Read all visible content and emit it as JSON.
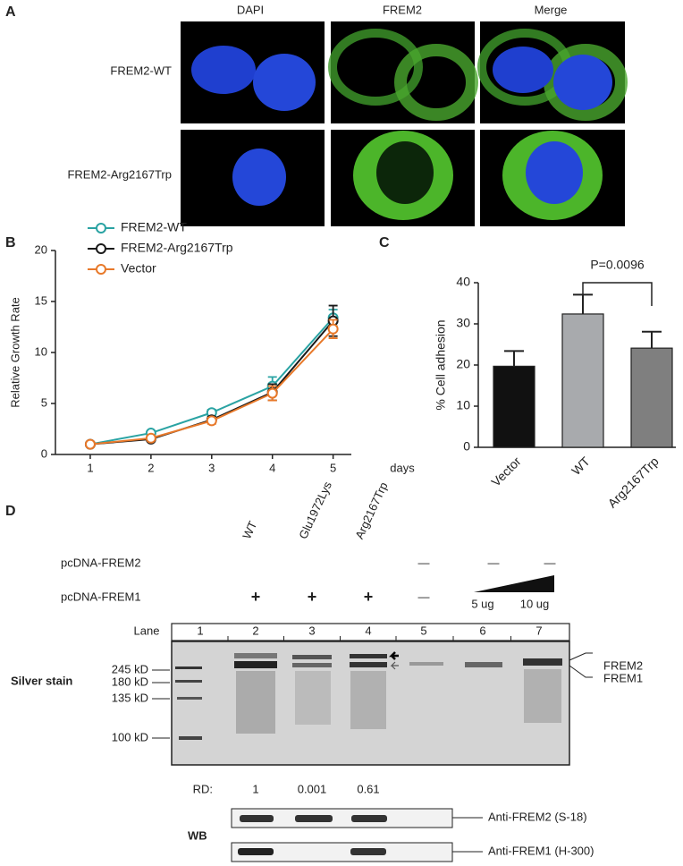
{
  "panel_a": {
    "label": "A",
    "columns": [
      "DAPI",
      "FREM2",
      "Merge"
    ],
    "rows": [
      "FREM2-WT",
      "FREM2-Arg2167Trp"
    ]
  },
  "chart_data": [
    {
      "type": "line",
      "panel": "B",
      "x": [
        1,
        2,
        3,
        4,
        5
      ],
      "xlim": [
        0.5,
        5.3
      ],
      "xticks": [
        1,
        2,
        3,
        4,
        5
      ],
      "x_label": "days",
      "y_label": "Relative Growth Rate",
      "ylim": [
        0,
        20
      ],
      "yticks": [
        0,
        5,
        10,
        15,
        20
      ],
      "legend": "upper left",
      "series": [
        {
          "name": "FREM2-WT",
          "color": "#2aa3a3",
          "values": [
            1,
            2.1,
            4.1,
            6.7,
            13.4
          ],
          "errors": [
            0.1,
            0.2,
            0.3,
            0.9,
            0.8
          ]
        },
        {
          "name": "FREM2-Arg2167Trp",
          "color": "#1a1a1a",
          "values": [
            1,
            1.5,
            3.4,
            6.1,
            13.1
          ],
          "errors": [
            0.1,
            0.2,
            0.3,
            0.8,
            1.5
          ]
        },
        {
          "name": "Vector",
          "color": "#e8792a",
          "values": [
            1,
            1.6,
            3.3,
            6.0,
            12.3
          ],
          "errors": [
            0.1,
            0.2,
            0.3,
            0.7,
            0.9
          ]
        }
      ]
    },
    {
      "type": "bar",
      "panel": "C",
      "categories": [
        "Vector",
        "WT",
        "Arg2167Trp"
      ],
      "values": [
        19.7,
        32.4,
        24.1
      ],
      "errors": [
        3.7,
        4.7,
        4.0
      ],
      "colors": [
        "#111111",
        "#a8aaad",
        "#7f7f7f"
      ],
      "y_label": "% Cell adhesion",
      "ylim": [
        0,
        40
      ],
      "yticks": [
        0,
        10,
        20,
        30,
        40
      ],
      "annotation": "P=0.0096"
    }
  ],
  "panel_d": {
    "label": "D",
    "row_labels": [
      "pcDNA-FREM2",
      "pcDNA-FREM1"
    ],
    "frem2_row": [
      "WT",
      "Glu1972Lys",
      "Arg2167Trp",
      "—",
      "—",
      "—"
    ],
    "frem1_row": [
      "+",
      "+",
      "+",
      "—",
      "5 ug",
      "10 ug"
    ],
    "lane_title": "Lane",
    "lanes": [
      "1",
      "2",
      "3",
      "4",
      "5",
      "6",
      "7"
    ],
    "gel_label": "Silver stain",
    "markers": [
      "245 kD",
      "180 kD",
      "135 kD",
      "100 kD"
    ],
    "band_labels": [
      "FREM2",
      "FREM1"
    ],
    "rd_label": "RD:",
    "rd": [
      "1",
      "0.001",
      "0.61"
    ],
    "wb_label": "WB",
    "antibodies": [
      "Anti-FREM2 (S-18)",
      "Anti-FREM1 (H-300)"
    ]
  }
}
